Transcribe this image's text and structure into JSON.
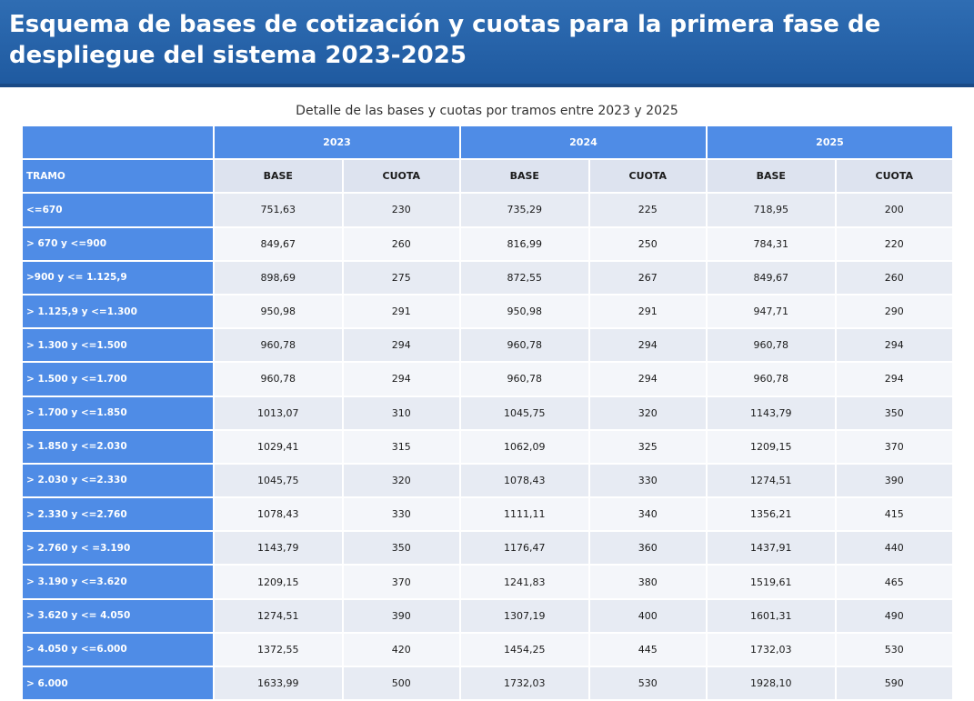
{
  "title": "Esquema de bases de cotización y cuotas para la primera fase de despliegue del sistema 2023-2025",
  "subtitle": "Detalle de las bases y cuotas por tramos entre 2023 y 2025",
  "colors": {
    "banner": "#1f5aa0",
    "header_blue": "#4f8ce6",
    "row_shade": "#e7ebf3"
  },
  "years": [
    "2023",
    "2024",
    "2025"
  ],
  "tramo_label": "TRAMO",
  "base_label": "BASE",
  "cuota_label": "CUOTA",
  "rows": [
    {
      "tramo": "<=670",
      "v": [
        "751,63",
        "230",
        "735,29",
        "225",
        "718,95",
        "200"
      ]
    },
    {
      "tramo": "> 670 y <=900",
      "v": [
        "849,67",
        "260",
        "816,99",
        "250",
        "784,31",
        "220"
      ]
    },
    {
      "tramo": ">900 y <= 1.125,9",
      "v": [
        "898,69",
        "275",
        "872,55",
        "267",
        "849,67",
        "260"
      ]
    },
    {
      "tramo": "> 1.125,9 y <=1.300",
      "v": [
        "950,98",
        "291",
        "950,98",
        "291",
        "947,71",
        "290"
      ]
    },
    {
      "tramo": "> 1.300 y <=1.500",
      "v": [
        "960,78",
        "294",
        "960,78",
        "294",
        "960,78",
        "294"
      ]
    },
    {
      "tramo": "> 1.500 y <=1.700",
      "v": [
        "960,78",
        "294",
        "960,78",
        "294",
        "960,78",
        "294"
      ]
    },
    {
      "tramo": "> 1.700 y <=1.850",
      "v": [
        "1013,07",
        "310",
        "1045,75",
        "320",
        "1143,79",
        "350"
      ]
    },
    {
      "tramo": "> 1.850 y <=2.030",
      "v": [
        "1029,41",
        "315",
        "1062,09",
        "325",
        "1209,15",
        "370"
      ]
    },
    {
      "tramo": "> 2.030 y <=2.330",
      "v": [
        "1045,75",
        "320",
        "1078,43",
        "330",
        "1274,51",
        "390"
      ]
    },
    {
      "tramo": "> 2.330 y <=2.760",
      "v": [
        "1078,43",
        "330",
        "1111,11",
        "340",
        "1356,21",
        "415"
      ]
    },
    {
      "tramo": "> 2.760 y < =3.190",
      "v": [
        "1143,79",
        "350",
        "1176,47",
        "360",
        "1437,91",
        "440"
      ]
    },
    {
      "tramo": "> 3.190 y <=3.620",
      "v": [
        "1209,15",
        "370",
        "1241,83",
        "380",
        "1519,61",
        "465"
      ]
    },
    {
      "tramo": "> 3.620 y <= 4.050",
      "v": [
        "1274,51",
        "390",
        "1307,19",
        "400",
        "1601,31",
        "490"
      ]
    },
    {
      "tramo": "> 4.050 y <=6.000",
      "v": [
        "1372,55",
        "420",
        "1454,25",
        "445",
        "1732,03",
        "530"
      ]
    },
    {
      "tramo": "> 6.000",
      "v": [
        "1633,99",
        "500",
        "1732,03",
        "530",
        "1928,10",
        "590"
      ]
    }
  ]
}
